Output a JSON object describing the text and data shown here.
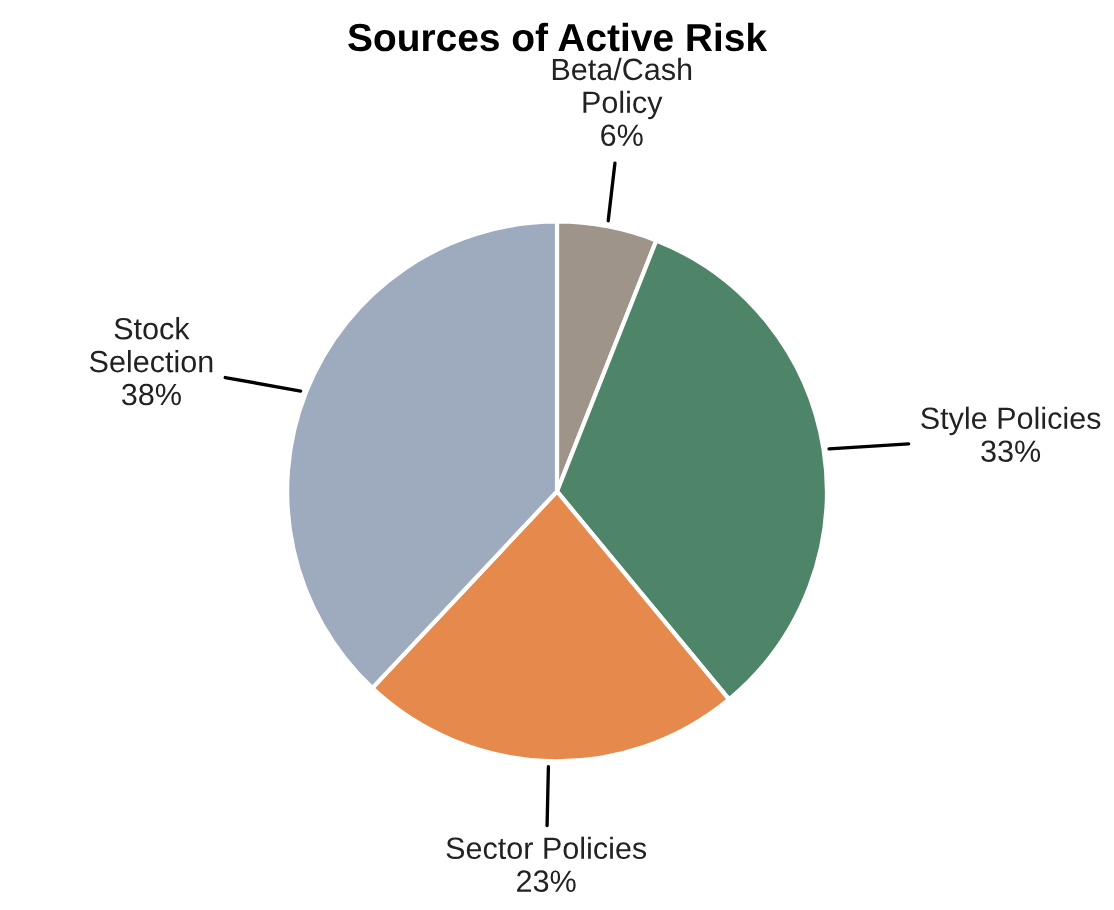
{
  "chart_data": {
    "type": "pie",
    "title": "Sources of Active Risk",
    "categories": [
      "Beta/Cash\nPolicy",
      "Style Policies",
      "Sector Policies",
      "Stock\nSelection"
    ],
    "values": [
      6,
      33,
      23,
      38
    ],
    "value_labels": [
      "6%",
      "33%",
      "23%",
      "38%"
    ],
    "colors": [
      "#9e948a",
      "#4e8468",
      "#e58a4c",
      "#9eabbf"
    ],
    "legend": false
  }
}
